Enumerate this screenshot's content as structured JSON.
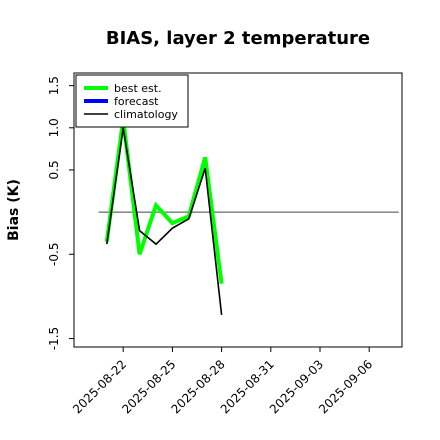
{
  "chart_data": {
    "type": "line",
    "title": "BIAS, layer 2 temperature",
    "xlabel": "",
    "ylabel": "Bias (K)",
    "x_ticks": [
      "2025-08-22",
      "2025-08-25",
      "2025-08-28",
      "2025-08-31",
      "2025-09-03",
      "2025-09-06"
    ],
    "x_tick_colors": [
      "#000000",
      "#000000",
      "#228b22",
      "#000000",
      "#000000",
      "#000000"
    ],
    "y_ticks": [
      -1.5,
      -0.5,
      0.5,
      1.0,
      1.5
    ],
    "y_tick_labels": [
      "-1.5",
      "-0.5",
      "0.5",
      "1.0",
      "1.5"
    ],
    "xlim": [
      "2025-08-19",
      "2025-09-08"
    ],
    "ylim": [
      -1.6,
      1.65
    ],
    "reference_line": 0,
    "legend": {
      "position": "top-left",
      "entries": [
        {
          "label": "best est.",
          "color": "#00ff00"
        },
        {
          "label": "forecast",
          "color": "#0000ff"
        },
        {
          "label": "climatology",
          "color": "#000000"
        }
      ]
    },
    "series": [
      {
        "name": "best est.",
        "color": "#00ff00",
        "x": [
          "2025-08-21",
          "2025-08-22",
          "2025-08-23",
          "2025-08-24",
          "2025-08-25",
          "2025-08-26",
          "2025-08-27",
          "2025-08-28"
        ],
        "y": [
          -0.35,
          1.1,
          -0.5,
          0.08,
          -0.13,
          -0.05,
          0.65,
          -0.85
        ]
      },
      {
        "name": "climatology",
        "color": "#000000",
        "x": [
          "2025-08-21",
          "2025-08-22",
          "2025-08-23",
          "2025-08-24",
          "2025-08-25",
          "2025-08-26",
          "2025-08-27",
          "2025-08-28"
        ],
        "y": [
          -0.38,
          1.0,
          -0.22,
          -0.38,
          -0.19,
          -0.08,
          0.52,
          -1.22
        ]
      }
    ]
  }
}
